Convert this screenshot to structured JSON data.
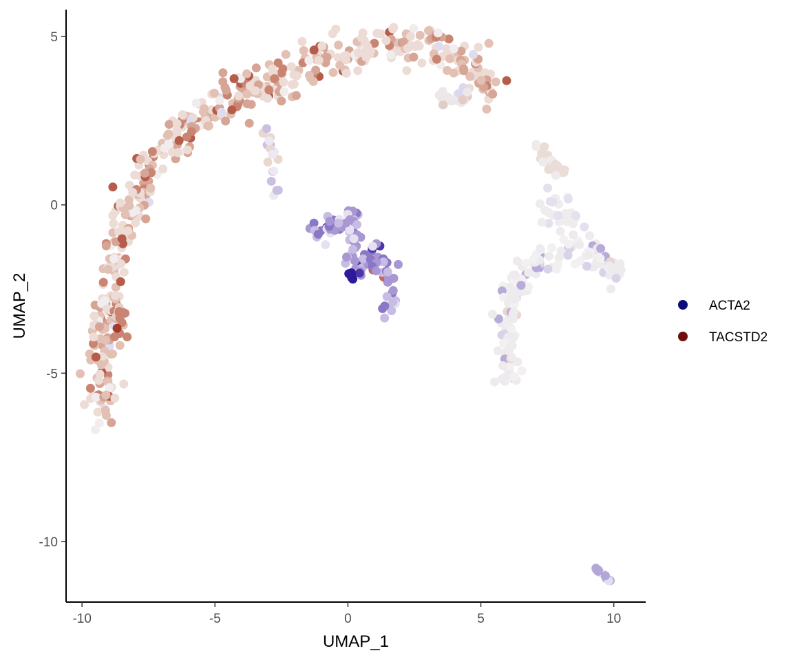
{
  "chart_data": {
    "type": "scatter",
    "title": "",
    "xlabel": "UMAP_1",
    "ylabel": "UMAP_2",
    "xlim": [
      -10.6,
      11.2
    ],
    "ylim": [
      -11.8,
      5.8
    ],
    "x_ticks": [
      -10,
      -5,
      0,
      5,
      10
    ],
    "x_tick_labels": [
      "-10",
      "-5",
      "0",
      "5",
      "10"
    ],
    "y_ticks": [
      -10,
      -5,
      0,
      5
    ],
    "y_tick_labels": [
      "-10",
      "-5",
      "0",
      "5"
    ],
    "grid": false,
    "legend_position": "right",
    "legend": [
      {
        "label": "ACTA2",
        "color": "#0c0c7a"
      },
      {
        "label": "TACSTD2",
        "color": "#6e0f0a"
      }
    ],
    "color_scale": {
      "acta2_high": "#1b0f8a",
      "acta2_mid": "#8f7fcc",
      "neutral": "#f1eeef",
      "tacstd2_mid": "#d8a090",
      "tacstd2_high": "#8e1a10"
    },
    "clusters": [
      {
        "name": "arc",
        "path": [
          [
            -9.2,
            -6.3
          ],
          [
            -9.2,
            -5.5
          ],
          [
            -9.3,
            -4.5
          ],
          [
            -9.2,
            -3.5
          ],
          [
            -9.0,
            -2.5
          ],
          [
            -8.7,
            -1.5
          ],
          [
            -8.3,
            -0.6
          ],
          [
            -7.7,
            0.6
          ],
          [
            -7.0,
            1.6
          ],
          [
            -6.0,
            2.3
          ],
          [
            -5.0,
            2.9
          ],
          [
            -4.0,
            3.3
          ],
          [
            -3.0,
            3.7
          ],
          [
            -2.0,
            4.0
          ],
          [
            -1.0,
            4.3
          ],
          [
            0.0,
            4.5
          ],
          [
            1.0,
            4.7
          ],
          [
            2.0,
            4.8
          ],
          [
            3.0,
            4.7
          ],
          [
            4.0,
            4.5
          ],
          [
            4.8,
            4.0
          ],
          [
            5.4,
            3.6
          ]
        ],
        "count": 520,
        "spread": 0.38,
        "palette": [
          [
            0.35,
            "#eddcd6"
          ],
          [
            0.25,
            "#e2c0b4"
          ],
          [
            0.15,
            "#d6a595"
          ],
          [
            0.1,
            "#c98572"
          ],
          [
            0.07,
            "#f1edee"
          ],
          [
            0.05,
            "#b55c4a"
          ],
          [
            0.03,
            "#e0dcef"
          ]
        ]
      },
      {
        "name": "arc-branch",
        "path": [
          [
            -3.0,
            2.3
          ],
          [
            -2.9,
            1.5
          ],
          [
            -2.8,
            0.8
          ],
          [
            -2.6,
            0.3
          ]
        ],
        "count": 18,
        "spread": 0.12,
        "palette": [
          [
            0.4,
            "#cbbfe2"
          ],
          [
            0.3,
            "#e9d8d0"
          ],
          [
            0.3,
            "#ece9f2"
          ]
        ]
      },
      {
        "name": "arc-left-tail",
        "path": [
          [
            -8.7,
            -3.0
          ],
          [
            -8.5,
            -3.6
          ],
          [
            -8.5,
            -4.0
          ]
        ],
        "count": 16,
        "spread": 0.15,
        "palette": [
          [
            0.5,
            "#c98572"
          ],
          [
            0.3,
            "#e6cfc7"
          ],
          [
            0.2,
            "#a43a2c"
          ]
        ]
      },
      {
        "name": "arc-hook",
        "path": [
          [
            3.5,
            3.4
          ],
          [
            3.7,
            3.0
          ],
          [
            4.2,
            3.1
          ],
          [
            4.4,
            3.4
          ]
        ],
        "count": 22,
        "spread": 0.15,
        "palette": [
          [
            0.6,
            "#ece7e8"
          ],
          [
            0.2,
            "#e2ccc6"
          ],
          [
            0.2,
            "#dcd7ee"
          ]
        ]
      },
      {
        "name": "center",
        "path": [
          [
            -1.3,
            -0.8
          ],
          [
            -0.5,
            -0.7
          ],
          [
            0.2,
            -0.3
          ],
          [
            0.3,
            -1.0
          ],
          [
            0.1,
            -1.8
          ],
          [
            0.6,
            -2.0
          ],
          [
            1.1,
            -1.5
          ],
          [
            1.5,
            -2.2
          ],
          [
            1.6,
            -2.8
          ],
          [
            1.3,
            -3.3
          ]
        ],
        "count": 110,
        "spread": 0.2,
        "palette": [
          [
            0.35,
            "#a897d3"
          ],
          [
            0.25,
            "#c7bce3"
          ],
          [
            0.2,
            "#e5e1f1"
          ],
          [
            0.12,
            "#8a78c6"
          ],
          [
            0.05,
            "#4c35a8"
          ],
          [
            0.03,
            "#c26a55"
          ]
        ]
      },
      {
        "name": "center-core",
        "path": [
          [
            0.05,
            -1.9
          ],
          [
            0.2,
            -2.2
          ]
        ],
        "count": 6,
        "spread": 0.05,
        "palette": [
          [
            1.0,
            "#2c1a98"
          ]
        ]
      },
      {
        "name": "right",
        "path": [
          [
            6.0,
            -5.2
          ],
          [
            6.0,
            -4.2
          ],
          [
            6.1,
            -3.2
          ],
          [
            6.4,
            -2.4
          ],
          [
            6.9,
            -1.8
          ],
          [
            7.5,
            -1.6
          ],
          [
            8.2,
            -1.2
          ],
          [
            8.8,
            -1.3
          ],
          [
            9.5,
            -1.6
          ],
          [
            10.1,
            -2.0
          ]
        ],
        "count": 170,
        "spread": 0.3,
        "palette": [
          [
            0.55,
            "#eeebee"
          ],
          [
            0.2,
            "#f2f0f1"
          ],
          [
            0.12,
            "#d9d3ea"
          ],
          [
            0.08,
            "#b8aad9"
          ],
          [
            0.05,
            "#e8d6d0"
          ]
        ]
      },
      {
        "name": "right-upper",
        "path": [
          [
            7.5,
            0.2
          ],
          [
            8.0,
            -0.4
          ],
          [
            8.6,
            -0.3
          ]
        ],
        "count": 30,
        "spread": 0.3,
        "palette": [
          [
            0.7,
            "#efecee"
          ],
          [
            0.3,
            "#e4e0ee"
          ]
        ]
      },
      {
        "name": "right-top",
        "path": [
          [
            7.1,
            1.7
          ],
          [
            7.6,
            1.2
          ],
          [
            8.3,
            0.9
          ]
        ],
        "count": 26,
        "spread": 0.12,
        "palette": [
          [
            0.6,
            "#eadcd6"
          ],
          [
            0.4,
            "#efebec"
          ]
        ]
      },
      {
        "name": "far-right",
        "path": [
          [
            9.3,
            -10.8
          ],
          [
            9.9,
            -11.2
          ]
        ],
        "count": 14,
        "spread": 0.04,
        "palette": [
          [
            0.6,
            "#b3a6d8"
          ],
          [
            0.4,
            "#e3def0"
          ]
        ]
      }
    ]
  }
}
